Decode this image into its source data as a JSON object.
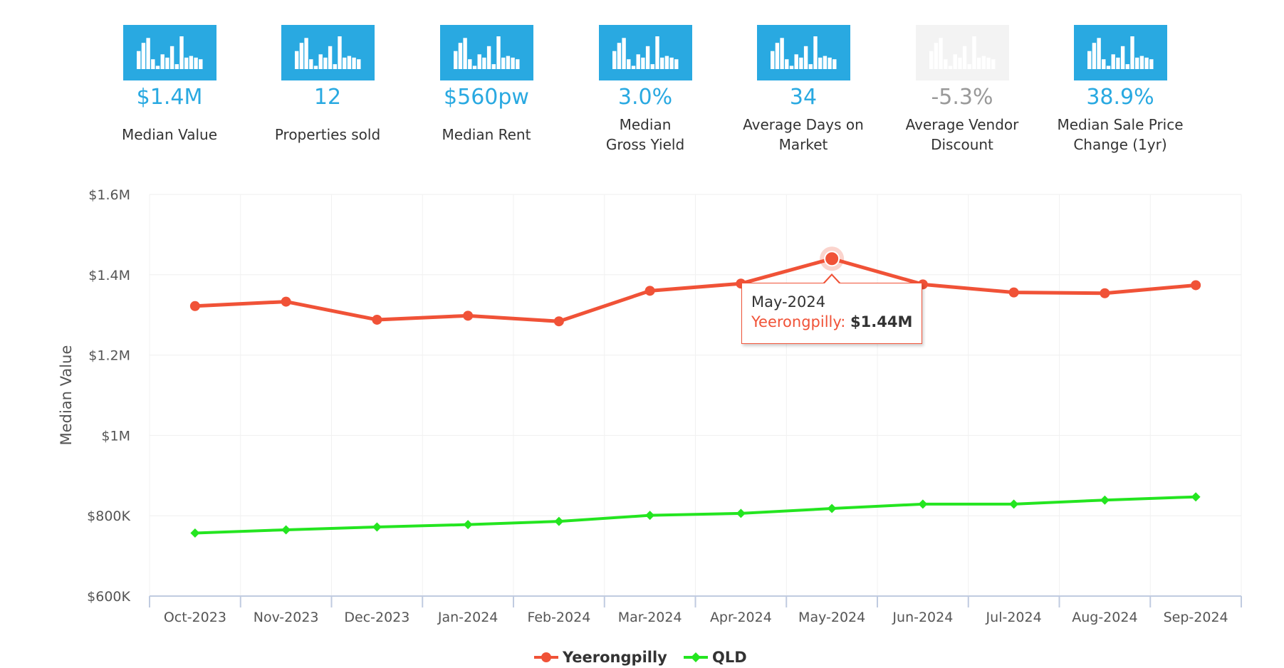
{
  "stats": [
    {
      "value": "$1.4M",
      "label": "Median Value",
      "active": true
    },
    {
      "value": "12",
      "label": "Properties sold",
      "active": true
    },
    {
      "value": "$560pw",
      "label": "Median Rent",
      "active": true
    },
    {
      "value": "3.0%",
      "label": "Median Gross Yield",
      "active": true
    },
    {
      "value": "34",
      "label": "Average Days on Market",
      "active": true
    },
    {
      "value": "-5.3%",
      "label": "Average Vendor Discount",
      "active": false
    },
    {
      "value": "38.9%",
      "label": "Median Sale Price Change (1yr)",
      "active": true
    }
  ],
  "chart_data": {
    "type": "line",
    "title": "",
    "xlabel": "",
    "ylabel": "Median Value",
    "categories": [
      "Oct-2023",
      "Nov-2023",
      "Dec-2023",
      "Jan-2024",
      "Feb-2024",
      "Mar-2024",
      "Apr-2024",
      "May-2024",
      "Jun-2024",
      "Jul-2024",
      "Aug-2024",
      "Sep-2024"
    ],
    "ylim": [
      600000,
      1600000
    ],
    "yticks": [
      600000,
      800000,
      1000000,
      1200000,
      1400000,
      1600000
    ],
    "ytick_labels": [
      "$600K",
      "$800K",
      "$1M",
      "$1.2M",
      "$1.4M",
      "$1.6M"
    ],
    "grid": true,
    "legend_position": "bottom-center",
    "series": [
      {
        "name": "Yeerongpilly",
        "color": "#f05237",
        "marker": "circle",
        "values": [
          1322000,
          1333000,
          1288000,
          1298000,
          1284000,
          1360000,
          1378000,
          1440000,
          1376000,
          1356000,
          1354000,
          1374000
        ]
      },
      {
        "name": "QLD",
        "color": "#24e520",
        "marker": "diamond",
        "values": [
          757000,
          765000,
          772000,
          778000,
          786000,
          801000,
          806000,
          818000,
          829000,
          829000,
          839000,
          847000
        ]
      }
    ],
    "tooltip": {
      "series_index": 0,
      "point_index": 7,
      "date": "May-2024",
      "series_label": "Yeerongpilly:",
      "value": "$1.44M"
    }
  }
}
